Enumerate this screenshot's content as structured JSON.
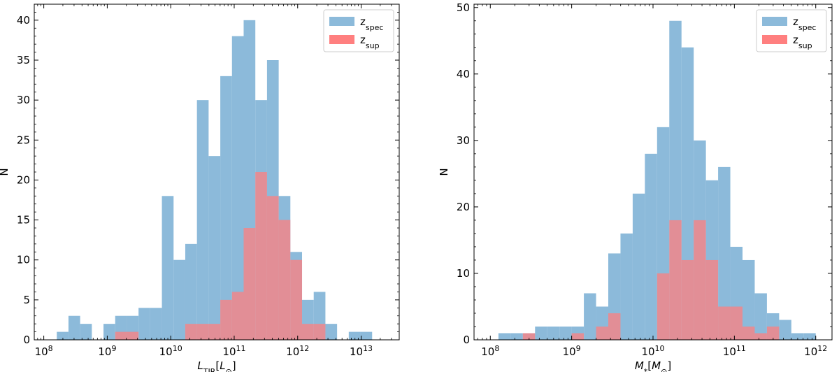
{
  "chart_data": [
    {
      "type": "bar",
      "subtype": "histogram",
      "log_x": true,
      "xlim_log10": [
        7.85,
        13.6
      ],
      "ylim": [
        0,
        42
      ],
      "xlabel": {
        "main": "L",
        "sub": "TIR",
        "unit_main": "L",
        "unit_sub": "⊙"
      },
      "ylabel": "N",
      "xticks_log10": [
        8,
        9,
        10,
        11,
        12,
        13
      ],
      "xtick_labels": [
        {
          "base": "10",
          "exp": "8"
        },
        {
          "base": "10",
          "exp": "9"
        },
        {
          "base": "10",
          "exp": "10"
        },
        {
          "base": "10",
          "exp": "11"
        },
        {
          "base": "10",
          "exp": "12"
        },
        {
          "base": "10",
          "exp": "13"
        }
      ],
      "yticks": [
        0,
        5,
        10,
        15,
        20,
        25,
        30,
        35,
        40
      ],
      "ytick_labels": [
        "0",
        "5",
        "10",
        "15",
        "20",
        "25",
        "30",
        "35",
        "40"
      ],
      "legend_position": "top-right",
      "bin_edges_log10": [
        8.205,
        8.389,
        8.573,
        8.757,
        8.941,
        9.125,
        9.309,
        9.493,
        9.677,
        9.861,
        10.045,
        10.229,
        10.413,
        10.597,
        10.781,
        10.965,
        11.149,
        11.333,
        11.517,
        11.701,
        11.885,
        12.069,
        12.253,
        12.437,
        12.621,
        12.805,
        12.989,
        13.173
      ],
      "series": [
        {
          "name": {
            "main": "z",
            "sub": "spec"
          },
          "color": "#7fb2d6",
          "counts": [
            1,
            3,
            2,
            0,
            2,
            3,
            3,
            4,
            4,
            18,
            10,
            12,
            30,
            23,
            33,
            38,
            40,
            30,
            35,
            18,
            11,
            5,
            6,
            2,
            0,
            1,
            1
          ]
        },
        {
          "name": {
            "main": "z",
            "sub": "sup"
          },
          "color": "#ff7f7f",
          "counts": [
            0,
            0,
            0,
            0,
            0,
            1,
            1,
            0,
            0,
            0,
            0,
            2,
            2,
            2,
            5,
            6,
            14,
            21,
            18,
            15,
            10,
            2,
            2,
            0,
            0,
            0,
            0
          ]
        }
      ]
    },
    {
      "type": "bar",
      "subtype": "histogram",
      "log_x": true,
      "xlim_log10": [
        7.8,
        12.2
      ],
      "ylim": [
        0,
        50.5
      ],
      "xlabel": {
        "main": "M",
        "sub": "*",
        "unit_main": "M",
        "unit_sub": "⊙"
      },
      "ylabel": "N",
      "xticks_log10": [
        8,
        9,
        10,
        11,
        12
      ],
      "xtick_labels": [
        {
          "base": "10",
          "exp": "8"
        },
        {
          "base": "10",
          "exp": "9"
        },
        {
          "base": "10",
          "exp": "10"
        },
        {
          "base": "10",
          "exp": "11"
        },
        {
          "base": "10",
          "exp": "12"
        }
      ],
      "yticks": [
        0,
        10,
        20,
        30,
        40,
        50
      ],
      "ytick_labels": [
        "0",
        "10",
        "20",
        "30",
        "40",
        "50"
      ],
      "legend_position": "top-right",
      "bin_edges_log10": [
        8.1,
        8.25,
        8.4,
        8.55,
        8.7,
        8.85,
        9.0,
        9.15,
        9.3,
        9.45,
        9.6,
        9.75,
        9.9,
        10.05,
        10.2,
        10.35,
        10.5,
        10.65,
        10.8,
        10.95,
        11.1,
        11.25,
        11.4,
        11.55,
        11.7,
        11.85,
        12.0
      ],
      "series": [
        {
          "name": {
            "main": "z",
            "sub": "spec"
          },
          "color": "#7fb2d6",
          "counts": [
            1,
            1,
            1,
            2,
            2,
            2,
            2,
            7,
            5,
            13,
            16,
            22,
            28,
            32,
            48,
            44,
            30,
            24,
            26,
            14,
            12,
            7,
            4,
            3,
            1,
            1
          ]
        },
        {
          "name": {
            "main": "z",
            "sub": "sup"
          },
          "color": "#ff7f7f",
          "counts": [
            0,
            0,
            1,
            0,
            0,
            0,
            1,
            0,
            2,
            4,
            0,
            0,
            0,
            10,
            18,
            12,
            18,
            12,
            5,
            5,
            2,
            1,
            2,
            0,
            0,
            0
          ]
        }
      ]
    }
  ]
}
